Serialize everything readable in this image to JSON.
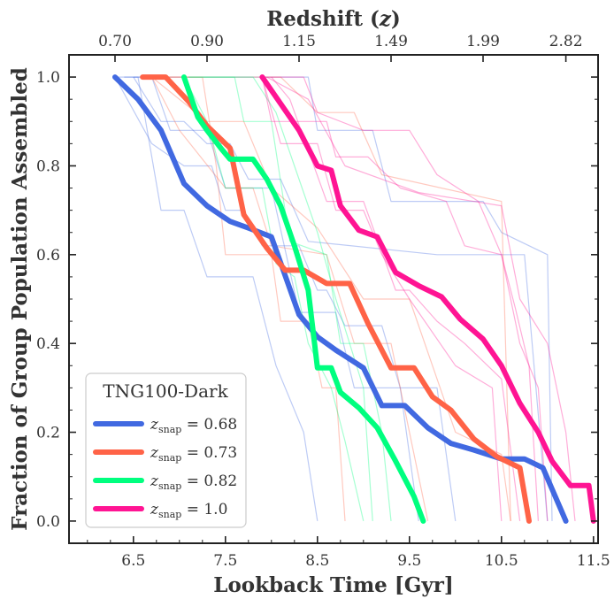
{
  "chart_data": {
    "type": "line",
    "xlabel": "Lookback Time [Gyr]",
    "ylabel": "Fraction of Group Population Assembled",
    "top_xlabel": "Redshift",
    "top_xlabel_symbol": "z",
    "xlim": [
      5.8,
      11.55
    ],
    "ylim": [
      -0.05,
      1.05
    ],
    "xticks": [
      6.5,
      7.5,
      8.5,
      9.5,
      10.5,
      11.5
    ],
    "xtick_labels": [
      "6.5",
      "7.5",
      "8.5",
      "9.5",
      "10.5",
      "11.5"
    ],
    "yticks": [
      0.0,
      0.2,
      0.4,
      0.6,
      0.8,
      1.0
    ],
    "ytick_labels": [
      "0.0",
      "0.2",
      "0.4",
      "0.6",
      "0.8",
      "1.0"
    ],
    "top_ticks": [
      {
        "x": 6.3,
        "label": "0.70"
      },
      {
        "x": 7.3,
        "label": "0.90"
      },
      {
        "x": 8.3,
        "label": "1.15"
      },
      {
        "x": 9.3,
        "label": "1.49"
      },
      {
        "x": 10.3,
        "label": "1.99"
      },
      {
        "x": 11.2,
        "label": "2.82"
      }
    ],
    "legend": {
      "title": "TNG100-Dark",
      "position": "lower-left",
      "entries": [
        {
          "label": "z",
          "sub": "snap",
          "value": " = 0.68",
          "color": "#4169e1"
        },
        {
          "label": "z",
          "sub": "snap",
          "value": " = 0.73",
          "color": "#ff6347"
        },
        {
          "label": "z",
          "sub": "snap",
          "value": " = 0.82",
          "color": "#00ff7f"
        },
        {
          "label": "z",
          "sub": "snap",
          "value": " = 1.0",
          "color": "#ff1493"
        }
      ]
    },
    "series": [
      {
        "name": "zsnap = 0.68",
        "color": "#4169e1",
        "points": [
          [
            6.3,
            1.0
          ],
          [
            6.55,
            0.95
          ],
          [
            6.8,
            0.88
          ],
          [
            7.05,
            0.76
          ],
          [
            7.3,
            0.71
          ],
          [
            7.55,
            0.675
          ],
          [
            7.75,
            0.66
          ],
          [
            8.0,
            0.64
          ],
          [
            8.3,
            0.465
          ],
          [
            8.5,
            0.415
          ],
          [
            8.7,
            0.385
          ],
          [
            9.0,
            0.345
          ],
          [
            9.2,
            0.26
          ],
          [
            9.45,
            0.26
          ],
          [
            9.7,
            0.21
          ],
          [
            9.95,
            0.175
          ],
          [
            10.2,
            0.16
          ],
          [
            10.5,
            0.14
          ],
          [
            10.75,
            0.14
          ],
          [
            10.95,
            0.12
          ],
          [
            11.2,
            0.0
          ]
        ]
      },
      {
        "name": "zsnap = 0.73",
        "color": "#ff6347",
        "points": [
          [
            6.6,
            1.0
          ],
          [
            6.85,
            1.0
          ],
          [
            7.1,
            0.945
          ],
          [
            7.3,
            0.89
          ],
          [
            7.55,
            0.84
          ],
          [
            7.7,
            0.69
          ],
          [
            7.95,
            0.615
          ],
          [
            8.15,
            0.565
          ],
          [
            8.35,
            0.565
          ],
          [
            8.6,
            0.535
          ],
          [
            8.85,
            0.535
          ],
          [
            9.05,
            0.445
          ],
          [
            9.3,
            0.345
          ],
          [
            9.55,
            0.345
          ],
          [
            9.75,
            0.28
          ],
          [
            9.95,
            0.25
          ],
          [
            10.2,
            0.185
          ],
          [
            10.45,
            0.145
          ],
          [
            10.7,
            0.12
          ],
          [
            10.8,
            0.0
          ]
        ]
      },
      {
        "name": "zsnap = 0.82",
        "color": "#00ff7f",
        "points": [
          [
            7.05,
            1.0
          ],
          [
            7.2,
            0.91
          ],
          [
            7.3,
            0.88
          ],
          [
            7.45,
            0.84
          ],
          [
            7.55,
            0.815
          ],
          [
            7.8,
            0.815
          ],
          [
            7.95,
            0.77
          ],
          [
            8.1,
            0.71
          ],
          [
            8.25,
            0.62
          ],
          [
            8.4,
            0.52
          ],
          [
            8.5,
            0.345
          ],
          [
            8.65,
            0.345
          ],
          [
            8.75,
            0.29
          ],
          [
            8.95,
            0.255
          ],
          [
            9.15,
            0.21
          ],
          [
            9.35,
            0.135
          ],
          [
            9.55,
            0.055
          ],
          [
            9.65,
            0.0
          ]
        ]
      },
      {
        "name": "zsnap = 1.0",
        "color": "#ff1493",
        "points": [
          [
            7.9,
            1.0
          ],
          [
            8.1,
            0.94
          ],
          [
            8.3,
            0.88
          ],
          [
            8.5,
            0.8
          ],
          [
            8.65,
            0.79
          ],
          [
            8.75,
            0.71
          ],
          [
            8.95,
            0.655
          ],
          [
            9.15,
            0.64
          ],
          [
            9.35,
            0.56
          ],
          [
            9.6,
            0.53
          ],
          [
            9.85,
            0.505
          ],
          [
            10.05,
            0.455
          ],
          [
            10.3,
            0.41
          ],
          [
            10.5,
            0.35
          ],
          [
            10.7,
            0.265
          ],
          [
            10.9,
            0.2
          ],
          [
            11.05,
            0.135
          ],
          [
            11.25,
            0.08
          ],
          [
            11.45,
            0.08
          ],
          [
            11.5,
            0.0
          ]
        ]
      }
    ],
    "faint_lines": [
      {
        "color": "#4169e1",
        "points": [
          [
            6.3,
            1.0
          ],
          [
            6.55,
            1.0
          ],
          [
            6.8,
            0.7
          ],
          [
            7.05,
            0.7
          ],
          [
            7.3,
            0.55
          ],
          [
            7.8,
            0.55
          ],
          [
            8.05,
            0.35
          ],
          [
            8.35,
            0.2
          ],
          [
            8.5,
            0.0
          ]
        ]
      },
      {
        "color": "#4169e1",
        "points": [
          [
            6.4,
            1.0
          ],
          [
            6.7,
            1.0
          ],
          [
            6.9,
            0.88
          ],
          [
            7.3,
            0.88
          ],
          [
            7.5,
            0.75
          ],
          [
            8.0,
            0.75
          ],
          [
            8.3,
            0.47
          ],
          [
            8.7,
            0.47
          ],
          [
            8.9,
            0.3
          ],
          [
            9.4,
            0.3
          ],
          [
            9.6,
            0.0
          ]
        ]
      },
      {
        "color": "#4169e1",
        "points": [
          [
            6.3,
            1.0
          ],
          [
            6.7,
            0.85
          ],
          [
            7.05,
            0.8
          ],
          [
            7.35,
            0.8
          ],
          [
            7.5,
            0.7
          ],
          [
            7.7,
            0.7
          ],
          [
            7.9,
            0.62
          ],
          [
            8.3,
            0.62
          ],
          [
            8.5,
            0.52
          ],
          [
            8.6,
            0.52
          ],
          [
            8.8,
            0.44
          ],
          [
            9.2,
            0.44
          ],
          [
            9.4,
            0.3
          ],
          [
            9.8,
            0.3
          ],
          [
            10.0,
            0.0
          ]
        ]
      },
      {
        "color": "#4169e1",
        "points": [
          [
            6.5,
            1.0
          ],
          [
            8.4,
            1.0
          ],
          [
            8.5,
            0.88
          ],
          [
            9.1,
            0.88
          ],
          [
            9.3,
            0.72
          ],
          [
            10.3,
            0.72
          ],
          [
            10.5,
            0.65
          ],
          [
            11.0,
            0.6
          ],
          [
            11.05,
            0.0
          ]
        ]
      },
      {
        "color": "#4169e1",
        "points": [
          [
            6.5,
            1.0
          ],
          [
            6.8,
            0.9
          ],
          [
            7.05,
            0.9
          ],
          [
            7.3,
            0.85
          ],
          [
            7.55,
            0.85
          ],
          [
            7.75,
            0.77
          ],
          [
            8.1,
            0.77
          ],
          [
            8.4,
            0.63
          ],
          [
            9.8,
            0.6
          ],
          [
            10.75,
            0.6
          ],
          [
            11.0,
            0.0
          ]
        ]
      },
      {
        "color": "#ff6347",
        "points": [
          [
            6.7,
            1.0
          ],
          [
            7.25,
            1.0
          ],
          [
            7.4,
            0.8
          ],
          [
            7.5,
            0.6
          ],
          [
            8.0,
            0.6
          ],
          [
            8.1,
            0.45
          ],
          [
            8.4,
            0.45
          ],
          [
            8.55,
            0.3
          ],
          [
            8.7,
            0.3
          ],
          [
            8.8,
            0.0
          ]
        ]
      },
      {
        "color": "#ff6347",
        "points": [
          [
            6.7,
            1.0
          ],
          [
            7.0,
            0.88
          ],
          [
            7.5,
            0.75
          ],
          [
            7.8,
            0.75
          ],
          [
            8.0,
            0.62
          ],
          [
            8.6,
            0.6
          ],
          [
            8.9,
            0.4
          ],
          [
            9.3,
            0.4
          ],
          [
            9.5,
            0.2
          ],
          [
            9.7,
            0.0
          ]
        ]
      },
      {
        "color": "#ff6347",
        "points": [
          [
            6.7,
            1.0
          ],
          [
            7.3,
            0.9
          ],
          [
            7.7,
            0.9
          ],
          [
            8.0,
            0.75
          ],
          [
            8.5,
            0.66
          ],
          [
            9.0,
            0.5
          ],
          [
            9.5,
            0.5
          ],
          [
            10.0,
            0.2
          ],
          [
            10.5,
            0.15
          ],
          [
            10.6,
            0.0
          ]
        ]
      },
      {
        "color": "#ff6347",
        "points": [
          [
            6.7,
            1.0
          ],
          [
            8.1,
            1.0
          ],
          [
            8.5,
            0.92
          ],
          [
            8.9,
            0.92
          ],
          [
            9.2,
            0.78
          ],
          [
            10.5,
            0.72
          ],
          [
            10.6,
            0.0
          ]
        ]
      },
      {
        "color": "#00ff7f",
        "points": [
          [
            7.05,
            1.0
          ],
          [
            7.3,
            0.9
          ],
          [
            7.5,
            0.75
          ],
          [
            7.9,
            0.75
          ],
          [
            8.05,
            0.58
          ],
          [
            8.25,
            0.55
          ],
          [
            8.4,
            0.4
          ],
          [
            8.65,
            0.3
          ],
          [
            8.8,
            0.18
          ],
          [
            9.0,
            0.0
          ]
        ]
      },
      {
        "color": "#00ff7f",
        "points": [
          [
            7.1,
            1.0
          ],
          [
            7.6,
            1.0
          ],
          [
            7.7,
            0.9
          ],
          [
            8.0,
            0.9
          ],
          [
            8.2,
            0.63
          ],
          [
            8.6,
            0.6
          ],
          [
            8.75,
            0.4
          ],
          [
            9.0,
            0.4
          ],
          [
            9.2,
            0.2
          ],
          [
            9.3,
            0.0
          ]
        ]
      },
      {
        "color": "#00ff7f",
        "points": [
          [
            7.1,
            1.0
          ],
          [
            7.8,
            1.0
          ],
          [
            8.05,
            0.92
          ],
          [
            8.25,
            0.8
          ],
          [
            8.5,
            0.65
          ],
          [
            8.7,
            0.5
          ],
          [
            9.0,
            0.3
          ],
          [
            9.1,
            0.0
          ]
        ]
      },
      {
        "color": "#ff1493",
        "points": [
          [
            7.9,
            1.0
          ],
          [
            8.1,
            0.85
          ],
          [
            8.5,
            0.85
          ],
          [
            8.7,
            0.7
          ],
          [
            9.0,
            0.7
          ],
          [
            9.2,
            0.6
          ],
          [
            9.5,
            0.5
          ],
          [
            10.0,
            0.35
          ],
          [
            10.4,
            0.3
          ],
          [
            10.5,
            0.0
          ]
        ]
      },
      {
        "color": "#ff1493",
        "points": [
          [
            7.9,
            1.0
          ],
          [
            8.35,
            1.0
          ],
          [
            8.5,
            0.92
          ],
          [
            9.0,
            0.88
          ],
          [
            9.5,
            0.88
          ],
          [
            9.8,
            0.78
          ],
          [
            10.25,
            0.72
          ],
          [
            10.5,
            0.6
          ],
          [
            10.65,
            0.48
          ],
          [
            10.8,
            0.35
          ],
          [
            10.9,
            0.0
          ]
        ]
      },
      {
        "color": "#ff1493",
        "points": [
          [
            7.9,
            1.0
          ],
          [
            8.0,
            0.9
          ],
          [
            8.6,
            0.9
          ],
          [
            8.7,
            0.82
          ],
          [
            9.05,
            0.82
          ],
          [
            9.4,
            0.75
          ],
          [
            9.9,
            0.72
          ],
          [
            10.1,
            0.62
          ],
          [
            10.5,
            0.6
          ],
          [
            10.7,
            0.4
          ],
          [
            10.9,
            0.3
          ],
          [
            11.0,
            0.0
          ]
        ]
      },
      {
        "color": "#ff1493",
        "points": [
          [
            7.95,
            1.0
          ],
          [
            8.4,
            0.95
          ],
          [
            8.8,
            0.8
          ],
          [
            9.6,
            0.74
          ],
          [
            10.5,
            0.71
          ],
          [
            10.7,
            0.5
          ],
          [
            11.0,
            0.4
          ],
          [
            11.2,
            0.2
          ],
          [
            11.3,
            0.0
          ]
        ]
      },
      {
        "color": "#ff1493",
        "points": [
          [
            8.0,
            1.0
          ],
          [
            8.2,
            0.95
          ],
          [
            8.6,
            0.72
          ],
          [
            9.0,
            0.72
          ],
          [
            9.35,
            0.52
          ],
          [
            9.5,
            0.52
          ],
          [
            9.8,
            0.45
          ],
          [
            10.1,
            0.4
          ],
          [
            10.5,
            0.32
          ],
          [
            10.7,
            0.0
          ]
        ]
      }
    ]
  }
}
